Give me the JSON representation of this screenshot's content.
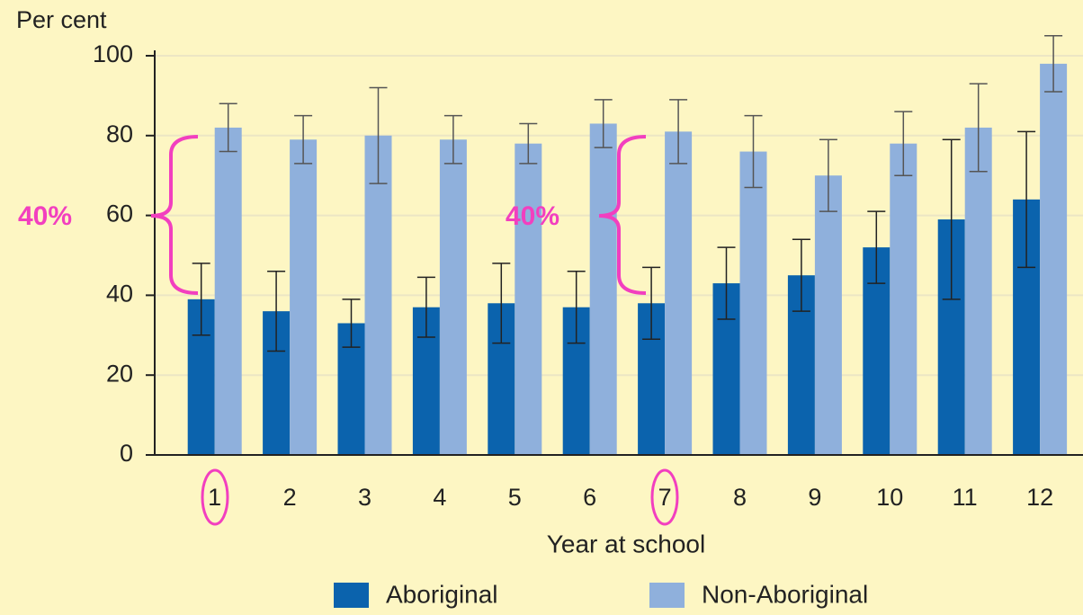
{
  "chart_data": {
    "type": "bar",
    "y_axis_label": "Per cent",
    "x_axis_label": "Year at school",
    "categories": [
      "1",
      "2",
      "3",
      "4",
      "5",
      "6",
      "7",
      "8",
      "9",
      "10",
      "11",
      "12"
    ],
    "series": [
      {
        "name": "Aboriginal",
        "color": "#0b63ad",
        "values": [
          39,
          36,
          33,
          37,
          38,
          37,
          38,
          43,
          45,
          52,
          59,
          64
        ],
        "errors": [
          9,
          10,
          6,
          7.5,
          10,
          9,
          9,
          9,
          9,
          9,
          20,
          17
        ]
      },
      {
        "name": "Non-Aboriginal",
        "color": "#8fb0dc",
        "values": [
          82,
          79,
          80,
          79,
          78,
          83,
          81,
          76,
          70,
          78,
          82,
          98
        ],
        "errors": [
          6,
          6,
          12,
          6,
          5,
          6,
          8,
          9,
          9,
          8,
          11,
          7
        ]
      }
    ],
    "ylim": [
      0,
      100
    ],
    "yticks": [
      0,
      20,
      40,
      60,
      80,
      100
    ],
    "grid": true,
    "annotations": [
      "40%",
      "40%"
    ]
  }
}
